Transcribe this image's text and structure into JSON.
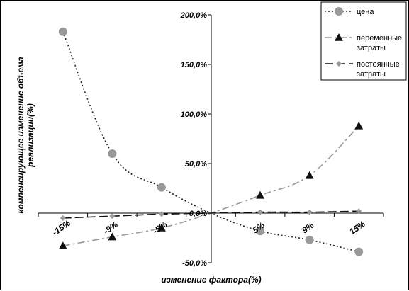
{
  "chart_data": {
    "type": "line",
    "categories": [
      "-15%",
      "-9%",
      "-5%",
      "",
      "5%",
      "9%",
      "15%"
    ],
    "x_tick_labels": [
      "-15%",
      "-9%",
      "-5%",
      "5%",
      "9%",
      "15%"
    ],
    "xlabel": "изменение фактора(%)",
    "ylabel": [
      "компенсирующее изменение объема",
      "реализации(%)"
    ],
    "ylim": [
      -50,
      200
    ],
    "y_ticks": [
      -50,
      0,
      50,
      100,
      150,
      200
    ],
    "y_tick_labels": [
      "-50,0%",
      "0,0%",
      "50,0%",
      "100,0%",
      "150,0%",
      "200,0%"
    ],
    "grid": false,
    "legend_position": "top-right",
    "series": [
      {
        "name": "цена",
        "values": [
          183,
          60,
          26,
          0,
          -18,
          -27,
          -39
        ],
        "color": "#222222",
        "marker": "circle",
        "marker_color": "#999999",
        "dash": "2,3"
      },
      {
        "name": "переменные затраты",
        "values": [
          -33,
          -24,
          -15,
          0,
          18,
          38,
          88
        ],
        "color": "#999999",
        "marker": "triangle",
        "marker_color": "#111111",
        "dash": "10,4,3,4"
      },
      {
        "name": "постоянные затраты",
        "values": [
          -5,
          -3,
          -1,
          0,
          1,
          1,
          2
        ],
        "color": "#111111",
        "marker": "diamond",
        "marker_color": "#999999",
        "dash": "12,5"
      }
    ]
  }
}
